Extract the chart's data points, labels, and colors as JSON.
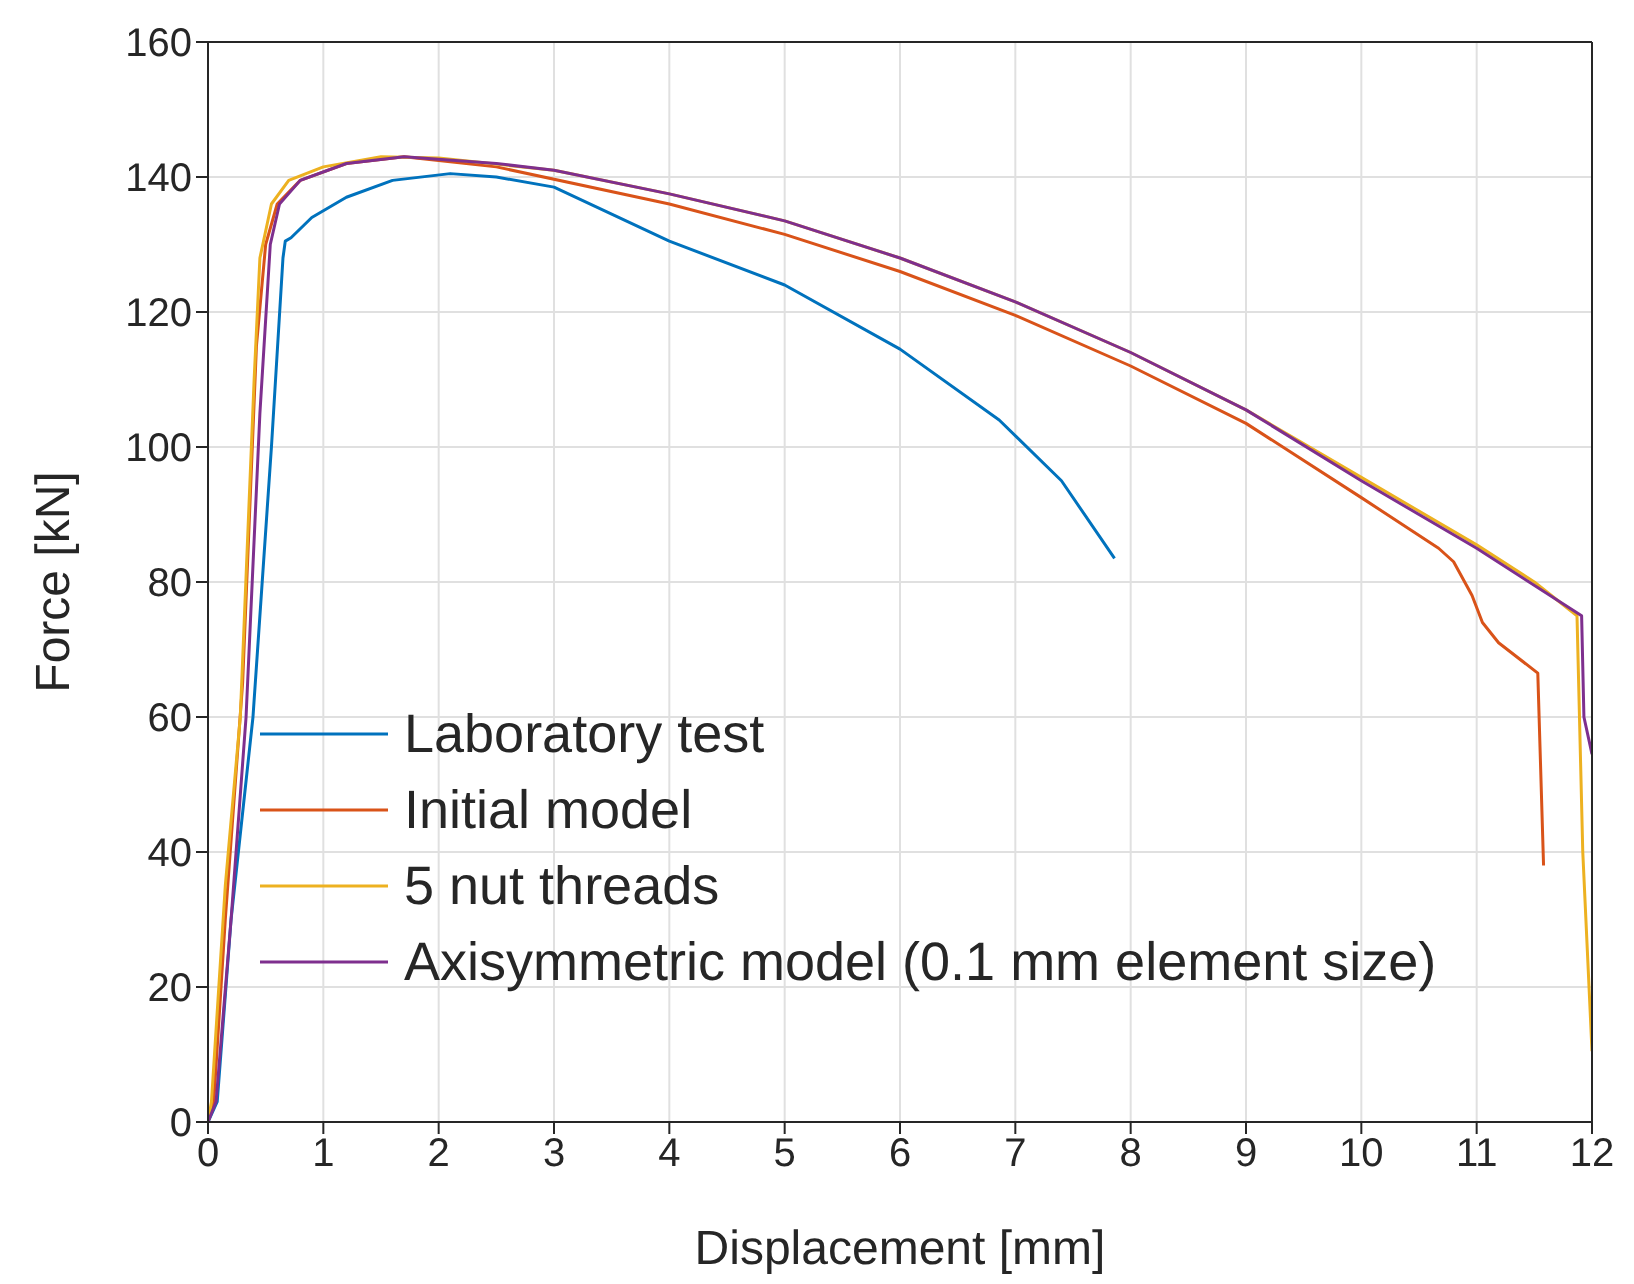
{
  "chart_data": {
    "type": "line",
    "xlabel": "Displacement [mm]",
    "ylabel": "Force [kN]",
    "xlim": [
      0,
      12
    ],
    "xticks": [
      0,
      1,
      2,
      3,
      4,
      5,
      6,
      7,
      8,
      9,
      10,
      11,
      12
    ],
    "ylim": [
      0,
      160
    ],
    "yticks": [
      0,
      20,
      40,
      60,
      80,
      100,
      120,
      140,
      160
    ],
    "grid": true,
    "legend": "bottom left",
    "marker": "none",
    "line_style": "solid",
    "series": [
      {
        "name": "Laboratory test",
        "color": "#0072bd",
        "x": [
          0,
          0.08,
          0.2,
          0.39,
          0.55,
          0.65,
          0.67,
          0.72,
          0.9,
          1.2,
          1.6,
          2.1,
          2.5,
          3,
          4,
          5,
          6,
          6.86,
          7.4,
          7.86
        ],
        "values": [
          0,
          3,
          30,
          60,
          100,
          128,
          130.5,
          131,
          134,
          137,
          139.5,
          140.5,
          140,
          138.5,
          130.5,
          124,
          114.5,
          104,
          95,
          83.5
        ]
      },
      {
        "name": "Initial model",
        "color": "#d95319",
        "x": [
          0,
          0.05,
          0.15,
          0.3,
          0.42,
          0.5,
          0.6,
          0.8,
          1.2,
          1.7,
          2.5,
          4,
          5,
          6,
          7,
          8,
          9,
          10,
          10.67,
          10.8,
          10.96,
          11.05,
          11.19,
          11.53,
          11.58
        ],
        "values": [
          0,
          3,
          30,
          65,
          115,
          130,
          136,
          139.5,
          142,
          143,
          141.5,
          136,
          131.5,
          126,
          119.5,
          112,
          103.5,
          92.5,
          85,
          83,
          78,
          74,
          71,
          66.5,
          38
        ]
      },
      {
        "name": "5 nut threads",
        "color": "#edb120",
        "x": [
          0,
          0.03,
          0.15,
          0.28,
          0.4,
          0.45,
          0.55,
          0.7,
          1,
          1.5,
          2,
          3,
          4,
          5,
          6,
          7,
          8,
          9,
          10,
          11,
          11.5,
          11.87,
          11.92,
          12
        ],
        "values": [
          0,
          3,
          35,
          60,
          110,
          128,
          136,
          139.5,
          141.5,
          143,
          142.8,
          141,
          137.5,
          133.5,
          128,
          121.5,
          114,
          105.5,
          95.5,
          85.5,
          80,
          75,
          40,
          10.5
        ]
      },
      {
        "name": "Axisymmetric model (0.1 mm element size)",
        "color": "#7e2f8e",
        "x": [
          0,
          0.07,
          0.2,
          0.33,
          0.45,
          0.54,
          0.62,
          0.8,
          1.2,
          1.7,
          2.5,
          3,
          4,
          5,
          6,
          7,
          8,
          9,
          10,
          11,
          11.91,
          11.93,
          12
        ],
        "values": [
          0,
          3,
          30,
          60,
          105,
          130,
          136,
          139.5,
          142,
          143,
          142,
          141,
          137.5,
          133.5,
          128,
          121.5,
          114,
          105.5,
          95,
          85,
          75,
          60,
          54.5
        ]
      }
    ]
  }
}
